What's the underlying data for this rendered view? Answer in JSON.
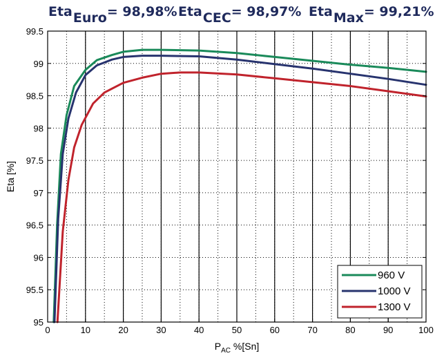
{
  "header": {
    "items": [
      {
        "label": "Eta",
        "sub": "Euro",
        "value": "= 98,98%"
      },
      {
        "label": "Eta",
        "sub": "CEC",
        "value": "= 98,97%"
      },
      {
        "label": "Eta",
        "sub": "Max",
        "value": "= 99,21%"
      }
    ]
  },
  "chart_data": {
    "type": "line",
    "xlabel_main": "P",
    "xlabel_sub": "AC",
    "xlabel_rest": "%[Sn]",
    "ylabel": "Eta [%]",
    "xlim": [
      0,
      100
    ],
    "ylim": [
      95,
      99.5
    ],
    "xticks": [
      0,
      10,
      20,
      30,
      40,
      50,
      60,
      70,
      80,
      90,
      100
    ],
    "yticks": [
      95,
      95.5,
      96,
      96.5,
      97,
      97.5,
      98,
      98.5,
      99,
      99.5
    ],
    "grid": true,
    "legend_position": "bottom-right",
    "series": [
      {
        "name": "960 V",
        "color": "#1a8a5a",
        "x": [
          1.6,
          2.5,
          3.5,
          5,
          7,
          10,
          13,
          17,
          20,
          25,
          30,
          40,
          50,
          60,
          70,
          80,
          90,
          100
        ],
        "y": [
          95.0,
          96.5,
          97.6,
          98.2,
          98.65,
          98.9,
          99.05,
          99.13,
          99.18,
          99.21,
          99.21,
          99.2,
          99.16,
          99.1,
          99.04,
          98.98,
          98.93,
          98.87
        ]
      },
      {
        "name": "1000 V",
        "color": "#27336e",
        "x": [
          1.8,
          2.8,
          4,
          5.5,
          7.5,
          10,
          13,
          17,
          20,
          25,
          30,
          40,
          50,
          60,
          70,
          80,
          90,
          100
        ],
        "y": [
          95.0,
          96.6,
          97.6,
          98.15,
          98.55,
          98.82,
          98.97,
          99.06,
          99.1,
          99.12,
          99.12,
          99.11,
          99.06,
          98.99,
          98.92,
          98.84,
          98.76,
          98.67
        ]
      },
      {
        "name": "1300 V",
        "color": "#c0232c",
        "x": [
          2.6,
          4,
          5.5,
          7,
          9,
          12,
          15,
          20,
          25,
          30,
          35,
          40,
          50,
          60,
          70,
          80,
          90,
          100
        ],
        "y": [
          95.0,
          96.4,
          97.2,
          97.7,
          98.05,
          98.38,
          98.55,
          98.7,
          98.78,
          98.84,
          98.86,
          98.86,
          98.83,
          98.77,
          98.71,
          98.65,
          98.57,
          98.49
        ]
      }
    ]
  }
}
